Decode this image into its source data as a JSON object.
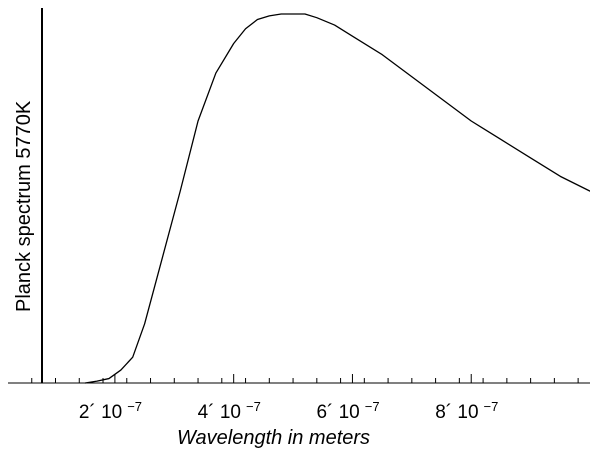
{
  "chart_data": {
    "type": "line",
    "title": "",
    "xlabel": "Wavelength in meters",
    "ylabel": "Planck spectrum 5770K",
    "xlim": [
      2e-08,
      1e-06
    ],
    "ylim": [
      0,
      1
    ],
    "grid": false,
    "x_ticks": [
      {
        "value": 2e-07,
        "mantissa": "2´ 10",
        "exponent": "−7"
      },
      {
        "value": 4e-07,
        "mantissa": "4´ 10",
        "exponent": "−7"
      },
      {
        "value": 6e-07,
        "mantissa": "6´ 10",
        "exponent": "−7"
      },
      {
        "value": 8e-07,
        "mantissa": "8´ 10",
        "exponent": "−7"
      }
    ],
    "series": [
      {
        "name": "",
        "x": [
          1.5e-07,
          1.7e-07,
          1.9e-07,
          2.1e-07,
          2.3e-07,
          2.5e-07,
          2.8e-07,
          3.1e-07,
          3.4e-07,
          3.7e-07,
          4e-07,
          4.2e-07,
          4.4e-07,
          4.6e-07,
          4.8e-07,
          5e-07,
          5.2e-07,
          5.4e-07,
          5.7e-07,
          6e-07,
          6.5e-07,
          7e-07,
          7.5e-07,
          8e-07,
          8.5e-07,
          9e-07,
          9.5e-07,
          1e-06
        ],
        "y": [
          0.0,
          0.005,
          0.012,
          0.035,
          0.07,
          0.16,
          0.34,
          0.52,
          0.71,
          0.84,
          0.92,
          0.96,
          0.985,
          0.995,
          1.0,
          1.0,
          1.0,
          0.99,
          0.97,
          0.94,
          0.89,
          0.83,
          0.77,
          0.71,
          0.66,
          0.61,
          0.56,
          0.52
        ]
      }
    ]
  }
}
